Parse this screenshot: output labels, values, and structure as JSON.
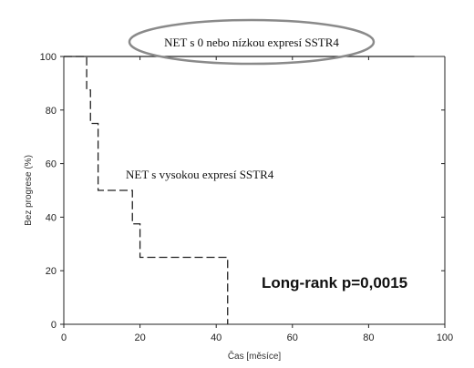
{
  "chart_data": {
    "type": "line",
    "xlabel": "Čas [měsíce]",
    "ylabel": "Bez progrese (%)",
    "xlim": [
      0,
      100
    ],
    "ylim": [
      0,
      100
    ],
    "xticks": [
      0,
      20,
      40,
      60,
      80,
      100
    ],
    "yticks": [
      0,
      20,
      40,
      60,
      80,
      100
    ],
    "series": [
      {
        "name": "NET s vysokou expresí SSTR4",
        "style": "dashed-step",
        "x": [
          0,
          6,
          6,
          7,
          7,
          9,
          9,
          18,
          18,
          20,
          20,
          43,
          43
        ],
        "y": [
          100,
          100,
          87.5,
          87.5,
          75,
          75,
          50,
          50,
          37.5,
          37.5,
          25,
          25,
          0
        ]
      },
      {
        "name": "NET s 0 nebo nízkou expresí SSTR4",
        "style": "solid",
        "x": [
          0,
          92
        ],
        "y": [
          100,
          100
        ]
      }
    ],
    "annotations": {
      "top_label": "NET s 0 nebo nízkou expresí SSTR4",
      "curve_label": "NET s vysokou expresí SSTR4",
      "p_value": "Long-rank p=0,0015"
    },
    "grid": false,
    "colors": {
      "line": "#222222",
      "ellipse": "#8a8a8a"
    }
  }
}
